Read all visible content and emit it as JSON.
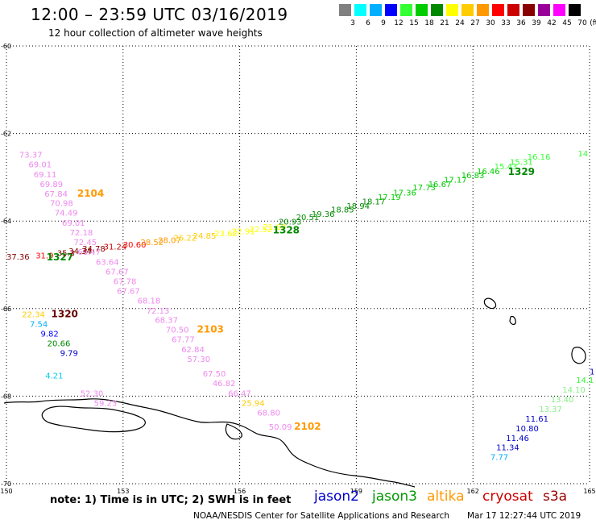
{
  "title": "12:00 – 23:59 UTC 03/16/2019",
  "subtitle": "12 hour collection of altimeter wave heights",
  "note": "note: 1) Time is in UTC; 2) SWH is in feet",
  "missions": [
    {
      "name": "jason2",
      "color": "#0000cc"
    },
    {
      "name": "jason3",
      "color": "#009900"
    },
    {
      "name": "altika",
      "color": "#ff9900"
    },
    {
      "name": "cryosat",
      "color": "#cc0000"
    },
    {
      "name": "s3a",
      "color": "#990000"
    }
  ],
  "footer_org": "NOAA/NESDIS Center for Satellite Applications and Research",
  "footer_time": "Mar 17 12:27:44 UTC 2019",
  "legend": {
    "colors": [
      "#808080",
      "#00ffff",
      "#00b0ff",
      "#0000ff",
      "#33ff33",
      "#00cc00",
      "#008800",
      "#ffff00",
      "#ffcc00",
      "#ff9900",
      "#ff0000",
      "#cc0000",
      "#880000",
      "#990099",
      "#ff00ff",
      "#000000"
    ],
    "ticks": [
      "3",
      "6",
      "9",
      "12",
      "15",
      "18",
      "21",
      "24",
      "27",
      "30",
      "33",
      "36",
      "39",
      "42",
      "45",
      "70"
    ],
    "unit": "(ft)"
  },
  "chart_data": {
    "type": "scatter",
    "xlim": [
      150,
      165
    ],
    "ylim": [
      -70,
      -60
    ],
    "x_ticks": [
      "150",
      "153",
      "156",
      "159",
      "162",
      "165"
    ],
    "y_ticks": [
      "-60",
      "-62",
      "-64",
      "-66",
      "-68",
      "-70"
    ],
    "grid": true,
    "labels": [
      {
        "text": "73.37",
        "x": 150.33,
        "y": -62.55,
        "color": "#ee88ee"
      },
      {
        "text": "69.01",
        "x": 150.57,
        "y": -62.77,
        "color": "#ee88ee"
      },
      {
        "text": "69.11",
        "x": 150.7,
        "y": -63.0,
        "color": "#ee88ee"
      },
      {
        "text": "69.89",
        "x": 150.86,
        "y": -63.22,
        "color": "#ee88ee"
      },
      {
        "text": "67.84",
        "x": 150.98,
        "y": -63.44,
        "color": "#ee88ee"
      },
      {
        "text": "2104",
        "x": 151.82,
        "y": -63.44,
        "color": "#ff9900",
        "bold": true
      },
      {
        "text": "70.98",
        "x": 151.12,
        "y": -63.66,
        "color": "#ee88ee"
      },
      {
        "text": "74.49",
        "x": 151.24,
        "y": -63.88,
        "color": "#ee88ee"
      },
      {
        "text": "69.01",
        "x": 151.43,
        "y": -64.11,
        "color": "#ee88ee"
      },
      {
        "text": "72.18",
        "x": 151.63,
        "y": -64.33,
        "color": "#ee88ee"
      },
      {
        "text": "72.45",
        "x": 151.73,
        "y": -64.55,
        "color": "#ee88ee"
      },
      {
        "text": "66.47",
        "x": 151.83,
        "y": -64.77,
        "color": "#ee88ee"
      },
      {
        "text": "63.64",
        "x": 152.3,
        "y": -65.0,
        "color": "#ee88ee"
      },
      {
        "text": "67.67",
        "x": 152.55,
        "y": -65.22,
        "color": "#ee88ee"
      },
      {
        "text": "67.78",
        "x": 152.75,
        "y": -65.44,
        "color": "#ee88ee"
      },
      {
        "text": "67.67",
        "x": 152.84,
        "y": -65.66,
        "color": "#ee88ee"
      },
      {
        "text": "68.18",
        "x": 153.37,
        "y": -65.88,
        "color": "#ee88ee"
      },
      {
        "text": "72.13",
        "x": 153.6,
        "y": -66.11,
        "color": "#ee88ee"
      },
      {
        "text": "68.37",
        "x": 153.82,
        "y": -66.33,
        "color": "#ee88ee"
      },
      {
        "text": "70.50",
        "x": 154.1,
        "y": -66.55,
        "color": "#ee88ee"
      },
      {
        "text": "2103",
        "x": 154.9,
        "y": -66.55,
        "color": "#ff9900",
        "bold": true
      },
      {
        "text": "67.77",
        "x": 154.25,
        "y": -66.77,
        "color": "#ee88ee"
      },
      {
        "text": "62.84",
        "x": 154.5,
        "y": -67.0,
        "color": "#ee88ee"
      },
      {
        "text": "57.30",
        "x": 154.65,
        "y": -67.22,
        "color": "#ee88ee"
      },
      {
        "text": "67.50",
        "x": 155.05,
        "y": -67.55,
        "color": "#ee88ee"
      },
      {
        "text": "46.82",
        "x": 155.3,
        "y": -67.77,
        "color": "#ee88ee"
      },
      {
        "text": "66.47",
        "x": 155.7,
        "y": -68.0,
        "color": "#ee88ee"
      },
      {
        "text": "25.94",
        "x": 156.05,
        "y": -68.22,
        "color": "#ffcc00"
      },
      {
        "text": "68.80",
        "x": 156.45,
        "y": -68.44,
        "color": "#ee88ee"
      },
      {
        "text": "50.09",
        "x": 156.75,
        "y": -68.77,
        "color": "#ee88ee"
      },
      {
        "text": "2102",
        "x": 157.4,
        "y": -68.77,
        "color": "#ff9900",
        "bold": true
      },
      {
        "text": "52.30",
        "x": 151.9,
        "y": -68.0,
        "color": "#ee88ee"
      },
      {
        "text": "59.23",
        "x": 152.25,
        "y": -68.22,
        "color": "#ee88ee"
      },
      {
        "text": "4.21",
        "x": 151.0,
        "y": -67.6,
        "color": "#00ccee"
      },
      {
        "text": "22.34",
        "x": 150.4,
        "y": -66.2,
        "color": "#ffcc00"
      },
      {
        "text": "1320",
        "x": 151.15,
        "y": -66.2,
        "color": "#660000",
        "bold": true
      },
      {
        "text": "7.54",
        "x": 150.6,
        "y": -66.42,
        "color": "#00b0ff"
      },
      {
        "text": "9.82",
        "x": 150.88,
        "y": -66.64,
        "color": "#0000ff"
      },
      {
        "text": "20.66",
        "x": 151.05,
        "y": -66.86,
        "color": "#008800"
      },
      {
        "text": "9.79",
        "x": 151.38,
        "y": -67.08,
        "color": "#0000cc"
      },
      {
        "text": "37.36",
        "x": 150.0,
        "y": -64.88,
        "color": "#880000"
      },
      {
        "text": "31.9",
        "x": 150.75,
        "y": -64.85,
        "color": "#ff0000"
      },
      {
        "text": "1327",
        "x": 151.03,
        "y": -64.9,
        "color": "#008800",
        "bold": true
      },
      {
        "text": "35.3",
        "x": 151.3,
        "y": -64.8,
        "color": "#880000"
      },
      {
        "text": "34.34",
        "x": 151.6,
        "y": -64.75,
        "color": "#880000"
      },
      {
        "text": "34.78",
        "x": 151.95,
        "y": -64.7,
        "color": "#880000"
      },
      {
        "text": "31.24",
        "x": 152.5,
        "y": -64.65,
        "color": "#cc0000"
      },
      {
        "text": "30.60",
        "x": 153.0,
        "y": -64.6,
        "color": "#ff0000"
      },
      {
        "text": "28.52",
        "x": 153.45,
        "y": -64.55,
        "color": "#ff9900"
      },
      {
        "text": "28.07",
        "x": 153.9,
        "y": -64.5,
        "color": "#ff9900"
      },
      {
        "text": "26.22",
        "x": 154.3,
        "y": -64.45,
        "color": "#ffcc00"
      },
      {
        "text": "24.85",
        "x": 154.8,
        "y": -64.4,
        "color": "#ffcc00"
      },
      {
        "text": "23.62",
        "x": 155.35,
        "y": -64.35,
        "color": "#ffff00"
      },
      {
        "text": "22.91",
        "x": 155.8,
        "y": -64.3,
        "color": "#ffff00"
      },
      {
        "text": "22.52",
        "x": 156.25,
        "y": -64.25,
        "color": "#ffff00"
      },
      {
        "text": "21.60",
        "x": 156.6,
        "y": -64.2,
        "color": "#ffff00"
      },
      {
        "text": "1328",
        "x": 156.85,
        "y": -64.28,
        "color": "#008800",
        "bold": true
      },
      {
        "text": "20.93",
        "x": 157.0,
        "y": -64.08,
        "color": "#008800"
      },
      {
        "text": "20.51",
        "x": 157.45,
        "y": -63.98,
        "color": "#008800"
      },
      {
        "text": "19.36",
        "x": 157.85,
        "y": -63.9,
        "color": "#008800"
      },
      {
        "text": "18.85",
        "x": 158.35,
        "y": -63.8,
        "color": "#008800"
      },
      {
        "text": "18.94",
        "x": 158.75,
        "y": -63.72,
        "color": "#008800"
      },
      {
        "text": "18.17",
        "x": 159.15,
        "y": -63.62,
        "color": "#008800"
      },
      {
        "text": "17.19",
        "x": 159.55,
        "y": -63.52,
        "color": "#00cc00"
      },
      {
        "text": "17.36",
        "x": 159.95,
        "y": -63.42,
        "color": "#00cc00"
      },
      {
        "text": "17.73",
        "x": 160.45,
        "y": -63.3,
        "color": "#00cc00"
      },
      {
        "text": "16.67",
        "x": 160.85,
        "y": -63.22,
        "color": "#00cc00"
      },
      {
        "text": "17.17",
        "x": 161.25,
        "y": -63.12,
        "color": "#00cc00"
      },
      {
        "text": "16.83",
        "x": 161.7,
        "y": -63.02,
        "color": "#00cc00"
      },
      {
        "text": "16.46",
        "x": 162.1,
        "y": -62.93,
        "color": "#00cc00"
      },
      {
        "text": "15.43",
        "x": 162.55,
        "y": -62.82,
        "color": "#33ff33"
      },
      {
        "text": "1329",
        "x": 162.9,
        "y": -62.95,
        "color": "#008800",
        "bold": true
      },
      {
        "text": "15.31",
        "x": 162.95,
        "y": -62.72,
        "color": "#33ff33"
      },
      {
        "text": "16.16",
        "x": 163.4,
        "y": -62.6,
        "color": "#33ff33"
      },
      {
        "text": "14",
        "x": 164.7,
        "y": -62.52,
        "color": "#33ff33"
      },
      {
        "text": "14.1",
        "x": 164.65,
        "y": -67.7,
        "color": "#33ff33"
      },
      {
        "text": "14.10",
        "x": 164.3,
        "y": -67.92,
        "color": "#88ee88"
      },
      {
        "text": "13.40",
        "x": 164.0,
        "y": -68.14,
        "color": "#88ee88"
      },
      {
        "text": "13.37",
        "x": 163.7,
        "y": -68.36,
        "color": "#88ee88"
      },
      {
        "text": "11.61",
        "x": 163.35,
        "y": -68.58,
        "color": "#0000cc"
      },
      {
        "text": "10.80",
        "x": 163.1,
        "y": -68.8,
        "color": "#0000cc"
      },
      {
        "text": "11.46",
        "x": 162.85,
        "y": -69.02,
        "color": "#0000cc"
      },
      {
        "text": "11.34",
        "x": 162.6,
        "y": -69.24,
        "color": "#0000cc"
      },
      {
        "text": "7.77",
        "x": 162.45,
        "y": -69.46,
        "color": "#00b0ff"
      },
      {
        "text": "1",
        "x": 165.0,
        "y": -67.5,
        "color": "#0000cc"
      }
    ]
  }
}
